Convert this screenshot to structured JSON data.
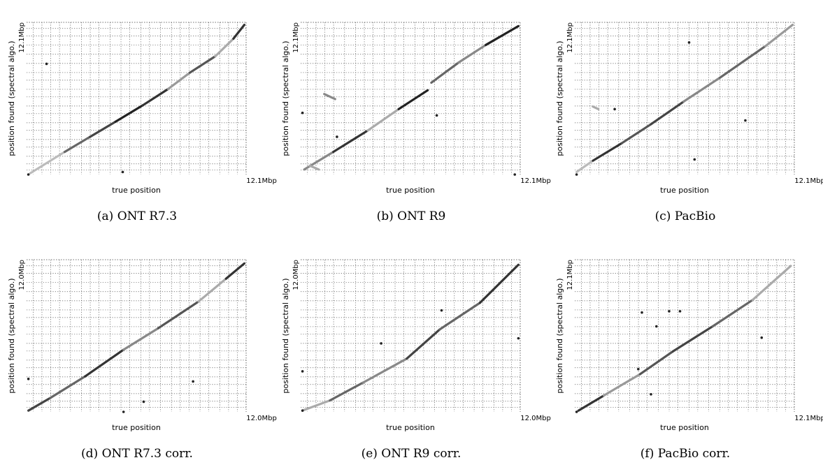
{
  "chart_data": [
    {
      "type": "scatter",
      "caption": "(a) ONT R7.3",
      "xlabel": "true position",
      "ylabel": "position found (spectral algo.)",
      "x_max_label": "12.1Mbp",
      "y_max_label": "12.1Mbp",
      "xlim": [
        0,
        12.1
      ],
      "ylim": [
        0,
        12.1
      ],
      "grid": true,
      "segments": [
        {
          "x1": 0.2,
          "y1": 0.1,
          "x2": 2.1,
          "y2": 1.8,
          "gray": "#bbbbbb"
        },
        {
          "x1": 2.1,
          "y1": 1.8,
          "x2": 3.5,
          "y2": 3.0,
          "gray": "#666666"
        },
        {
          "x1": 3.5,
          "y1": 3.0,
          "x2": 4.9,
          "y2": 4.2,
          "gray": "#444444"
        },
        {
          "x1": 4.9,
          "y1": 4.2,
          "x2": 6.4,
          "y2": 5.5,
          "gray": "#222222"
        },
        {
          "x1": 6.4,
          "y1": 5.5,
          "x2": 7.8,
          "y2": 6.8,
          "gray": "#333333"
        },
        {
          "x1": 7.8,
          "y1": 6.8,
          "x2": 9.0,
          "y2": 8.1,
          "gray": "#999999"
        },
        {
          "x1": 9.0,
          "y1": 8.1,
          "x2": 10.4,
          "y2": 9.4,
          "gray": "#555555"
        },
        {
          "x1": 10.4,
          "y1": 9.4,
          "x2": 11.4,
          "y2": 10.8,
          "gray": "#aaaaaa"
        },
        {
          "x1": 11.4,
          "y1": 10.8,
          "x2": 12.0,
          "y2": 11.9,
          "gray": "#333333"
        }
      ],
      "outliers": [
        {
          "x": 1.1,
          "y": 8.8
        },
        {
          "x": 5.3,
          "y": 0.2
        },
        {
          "x": 0.1,
          "y": 0.0
        }
      ]
    },
    {
      "type": "scatter",
      "caption": "(b) ONT R9",
      "xlabel": "true position",
      "ylabel": "position found (spectral algo.)",
      "x_max_label": "12.1Mbp",
      "y_max_label": "12.1Mbp",
      "xlim": [
        0,
        12.1
      ],
      "ylim": [
        0,
        12.1
      ],
      "grid": true,
      "segments": [
        {
          "x1": 0.2,
          "y1": 0.4,
          "x2": 1.8,
          "y2": 1.8,
          "gray": "#888888"
        },
        {
          "x1": 1.8,
          "y1": 1.8,
          "x2": 3.7,
          "y2": 3.5,
          "gray": "#333333"
        },
        {
          "x1": 3.7,
          "y1": 3.5,
          "x2": 5.4,
          "y2": 5.2,
          "gray": "#aaaaaa"
        },
        {
          "x1": 5.4,
          "y1": 5.2,
          "x2": 7.0,
          "y2": 6.7,
          "gray": "#222222"
        },
        {
          "x1": 7.2,
          "y1": 7.3,
          "x2": 8.7,
          "y2": 8.9,
          "gray": "#666666"
        },
        {
          "x1": 8.7,
          "y1": 8.9,
          "x2": 10.2,
          "y2": 10.3,
          "gray": "#888888"
        },
        {
          "x1": 10.2,
          "y1": 10.3,
          "x2": 12.0,
          "y2": 11.8,
          "gray": "#222222"
        },
        {
          "x1": 1.3,
          "y1": 6.4,
          "x2": 1.9,
          "y2": 6.0,
          "gray": "#888888"
        },
        {
          "x1": 0.5,
          "y1": 0.7,
          "x2": 1.0,
          "y2": 0.4,
          "gray": "#aaaaaa"
        }
      ],
      "outliers": [
        {
          "x": 0.1,
          "y": 4.9
        },
        {
          "x": 2.0,
          "y": 3.0
        },
        {
          "x": 7.5,
          "y": 4.7
        },
        {
          "x": 11.8,
          "y": 0.0
        }
      ]
    },
    {
      "type": "scatter",
      "caption": "(c) PacBio",
      "xlabel": "true position",
      "ylabel": "position found (spectral algo.)",
      "x_max_label": "12.1Mbp",
      "y_max_label": "12.1Mbp",
      "xlim": [
        0,
        12.1
      ],
      "ylim": [
        0,
        12.1
      ],
      "grid": true,
      "segments": [
        {
          "x1": 0.1,
          "y1": 0.2,
          "x2": 1.0,
          "y2": 1.1,
          "gray": "#bbbbbb"
        },
        {
          "x1": 1.0,
          "y1": 1.1,
          "x2": 2.6,
          "y2": 2.5,
          "gray": "#333333"
        },
        {
          "x1": 2.6,
          "y1": 2.5,
          "x2": 4.2,
          "y2": 4.0,
          "gray": "#555555"
        },
        {
          "x1": 4.2,
          "y1": 4.0,
          "x2": 6.0,
          "y2": 5.8,
          "gray": "#444444"
        },
        {
          "x1": 6.0,
          "y1": 5.8,
          "x2": 8.0,
          "y2": 7.7,
          "gray": "#888888"
        },
        {
          "x1": 8.0,
          "y1": 7.7,
          "x2": 10.5,
          "y2": 10.2,
          "gray": "#666666"
        },
        {
          "x1": 10.5,
          "y1": 10.2,
          "x2": 12.0,
          "y2": 11.9,
          "gray": "#999999"
        },
        {
          "x1": 1.0,
          "y1": 5.4,
          "x2": 1.3,
          "y2": 5.2,
          "gray": "#aaaaaa"
        }
      ],
      "outliers": [
        {
          "x": 6.3,
          "y": 10.5
        },
        {
          "x": 6.6,
          "y": 1.2
        },
        {
          "x": 0.1,
          "y": 0.0
        },
        {
          "x": 2.2,
          "y": 5.2
        },
        {
          "x": 9.4,
          "y": 4.3
        }
      ]
    },
    {
      "type": "scatter",
      "caption": "(d) ONT R7.3 corr.",
      "xlabel": "true position",
      "ylabel": "position found (spectral algo.)",
      "x_max_label": "12.0Mbp",
      "y_max_label": "12.0Mbp",
      "xlim": [
        0,
        12.0
      ],
      "ylim": [
        0,
        12.0
      ],
      "grid": true,
      "segments": [
        {
          "x1": 0.1,
          "y1": 0.1,
          "x2": 1.3,
          "y2": 1.1,
          "gray": "#444444"
        },
        {
          "x1": 1.3,
          "y1": 1.1,
          "x2": 3.2,
          "y2": 2.8,
          "gray": "#666666"
        },
        {
          "x1": 3.2,
          "y1": 2.8,
          "x2": 5.3,
          "y2": 4.9,
          "gray": "#333333"
        },
        {
          "x1": 5.3,
          "y1": 4.9,
          "x2": 7.2,
          "y2": 6.6,
          "gray": "#888888"
        },
        {
          "x1": 7.2,
          "y1": 6.6,
          "x2": 9.4,
          "y2": 8.7,
          "gray": "#555555"
        },
        {
          "x1": 9.4,
          "y1": 8.7,
          "x2": 10.9,
          "y2": 10.5,
          "gray": "#aaaaaa"
        },
        {
          "x1": 10.9,
          "y1": 10.5,
          "x2": 11.9,
          "y2": 11.7,
          "gray": "#333333"
        }
      ],
      "outliers": [
        {
          "x": 6.4,
          "y": 0.8
        },
        {
          "x": 9.1,
          "y": 2.4
        },
        {
          "x": 5.3,
          "y": 0.0
        },
        {
          "x": 0.1,
          "y": 2.6
        }
      ]
    },
    {
      "type": "scatter",
      "caption": "(e) ONT R9 corr.",
      "xlabel": "true position",
      "ylabel": "position found (spectral algo.)",
      "x_max_label": "12.0Mbp",
      "y_max_label": "12.0Mbp",
      "xlim": [
        0,
        12.0
      ],
      "ylim": [
        0,
        12.0
      ],
      "grid": true,
      "segments": [
        {
          "x1": 0.1,
          "y1": 0.1,
          "x2": 1.6,
          "y2": 0.9,
          "gray": "#aaaaaa"
        },
        {
          "x1": 1.6,
          "y1": 0.9,
          "x2": 3.4,
          "y2": 2.3,
          "gray": "#666666"
        },
        {
          "x1": 3.4,
          "y1": 2.3,
          "x2": 5.8,
          "y2": 4.2,
          "gray": "#888888"
        },
        {
          "x1": 5.8,
          "y1": 4.2,
          "x2": 7.6,
          "y2": 6.5,
          "gray": "#444444"
        },
        {
          "x1": 7.6,
          "y1": 6.5,
          "x2": 9.8,
          "y2": 8.6,
          "gray": "#666666"
        },
        {
          "x1": 9.8,
          "y1": 8.6,
          "x2": 11.9,
          "y2": 11.6,
          "gray": "#333333"
        }
      ],
      "outliers": [
        {
          "x": 11.9,
          "y": 5.8
        },
        {
          "x": 0.1,
          "y": 3.2
        },
        {
          "x": 0.1,
          "y": 0.1
        },
        {
          "x": 7.7,
          "y": 8.0
        },
        {
          "x": 4.4,
          "y": 5.4
        }
      ]
    },
    {
      "type": "scatter",
      "caption": "(f) PacBio corr.",
      "xlabel": "true position",
      "ylabel": "position found (spectral algo.)",
      "x_max_label": "12.1Mbp",
      "y_max_label": "12.1Mbp",
      "xlim": [
        0,
        12.1
      ],
      "ylim": [
        0,
        12.1
      ],
      "grid": true,
      "segments": [
        {
          "x1": 0.2,
          "y1": 0.1,
          "x2": 1.6,
          "y2": 1.3,
          "gray": "#333333"
        },
        {
          "x1": 1.6,
          "y1": 1.3,
          "x2": 3.6,
          "y2": 3.0,
          "gray": "#999999"
        },
        {
          "x1": 3.6,
          "y1": 3.0,
          "x2": 5.4,
          "y2": 4.8,
          "gray": "#555555"
        },
        {
          "x1": 5.4,
          "y1": 4.8,
          "x2": 7.6,
          "y2": 6.8,
          "gray": "#444444"
        },
        {
          "x1": 7.6,
          "y1": 6.8,
          "x2": 9.8,
          "y2": 8.9,
          "gray": "#666666"
        },
        {
          "x1": 9.8,
          "y1": 8.9,
          "x2": 11.9,
          "y2": 11.6,
          "gray": "#aaaaaa"
        }
      ],
      "outliers": [
        {
          "x": 3.7,
          "y": 7.9
        },
        {
          "x": 5.2,
          "y": 8.0
        },
        {
          "x": 5.8,
          "y": 8.0
        },
        {
          "x": 4.5,
          "y": 6.8
        },
        {
          "x": 4.2,
          "y": 1.4
        },
        {
          "x": 3.5,
          "y": 3.4
        },
        {
          "x": 0.1,
          "y": 0.0
        },
        {
          "x": 10.3,
          "y": 5.9
        }
      ]
    }
  ]
}
